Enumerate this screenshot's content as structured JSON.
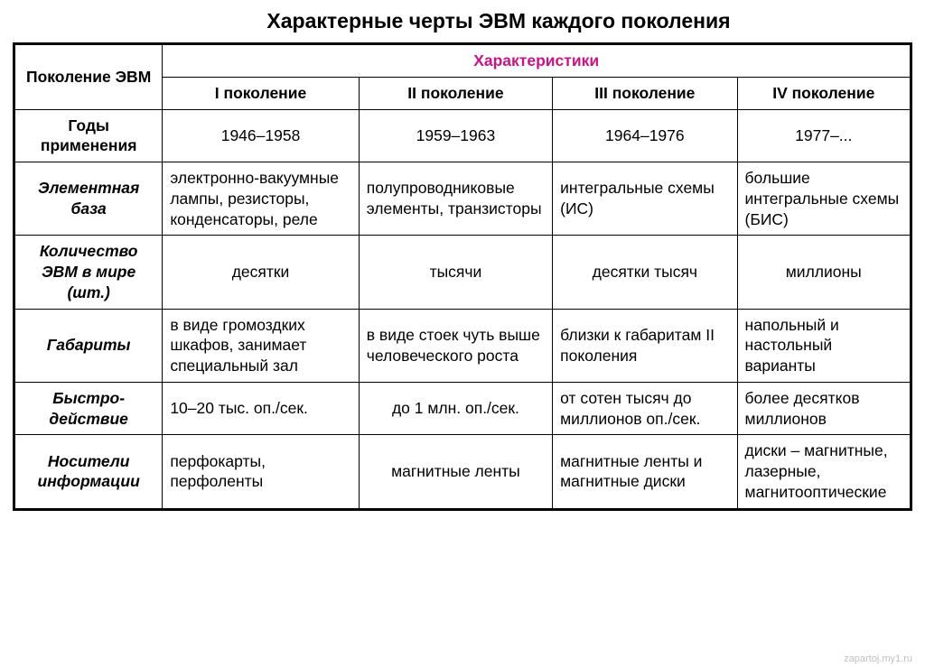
{
  "title": "Характерные черты ЭВМ каждого поколения",
  "headers": {
    "left": "Поколение ЭВМ",
    "group": "Характеристики",
    "gen1": "I поколение",
    "gen2": "II поколение",
    "gen3": "III поколение",
    "gen4": "IV поколение"
  },
  "rows": {
    "years": {
      "label": "Годы применения",
      "g1": "1946–1958",
      "g2": "1959–1963",
      "g3": "1964–1976",
      "g4": "1977–..."
    },
    "base": {
      "label": "Элементная база",
      "g1": "электронно-вакуумные лампы, резисторы, конденсаторы, реле",
      "g2": "полупроводниковые элементы, транзисторы",
      "g3": "интегральные схемы (ИС)",
      "g4": "большие интегральные схемы (БИС)"
    },
    "count": {
      "label": "Количество ЭВМ в мире (шт.)",
      "g1": "десятки",
      "g2": "тысячи",
      "g3": "десятки тысяч",
      "g4": "миллионы"
    },
    "size": {
      "label": "Габариты",
      "g1": "в виде громоздких шкафов, занимает специальный зал",
      "g2": "в виде стоек чуть выше человеческого роста",
      "g3": "близки к габаритам II поколения",
      "g4": "напольный и настольный варианты"
    },
    "speed": {
      "label": "Быстро-действие",
      "g1": "10–20 тыс. оп./сек.",
      "g2": "до 1 млн. оп./сек.",
      "g3": "от сотен тысяч до миллионов оп./сек.",
      "g4": "более десятков миллионов"
    },
    "media": {
      "label": "Носители информации",
      "g1": "перфокарты, перфоленты",
      "g2": "магнитные ленты",
      "g3": "магнитные ленты и магнитные диски",
      "g4": "диски – магнитные, лазерные, магнитооптические"
    }
  },
  "colors": {
    "border": "#000000",
    "text": "#000000",
    "header_accent": "#c71585",
    "background": "#ffffff",
    "watermark": "#bebebe"
  },
  "watermark": "zapartoj.my1.ru"
}
